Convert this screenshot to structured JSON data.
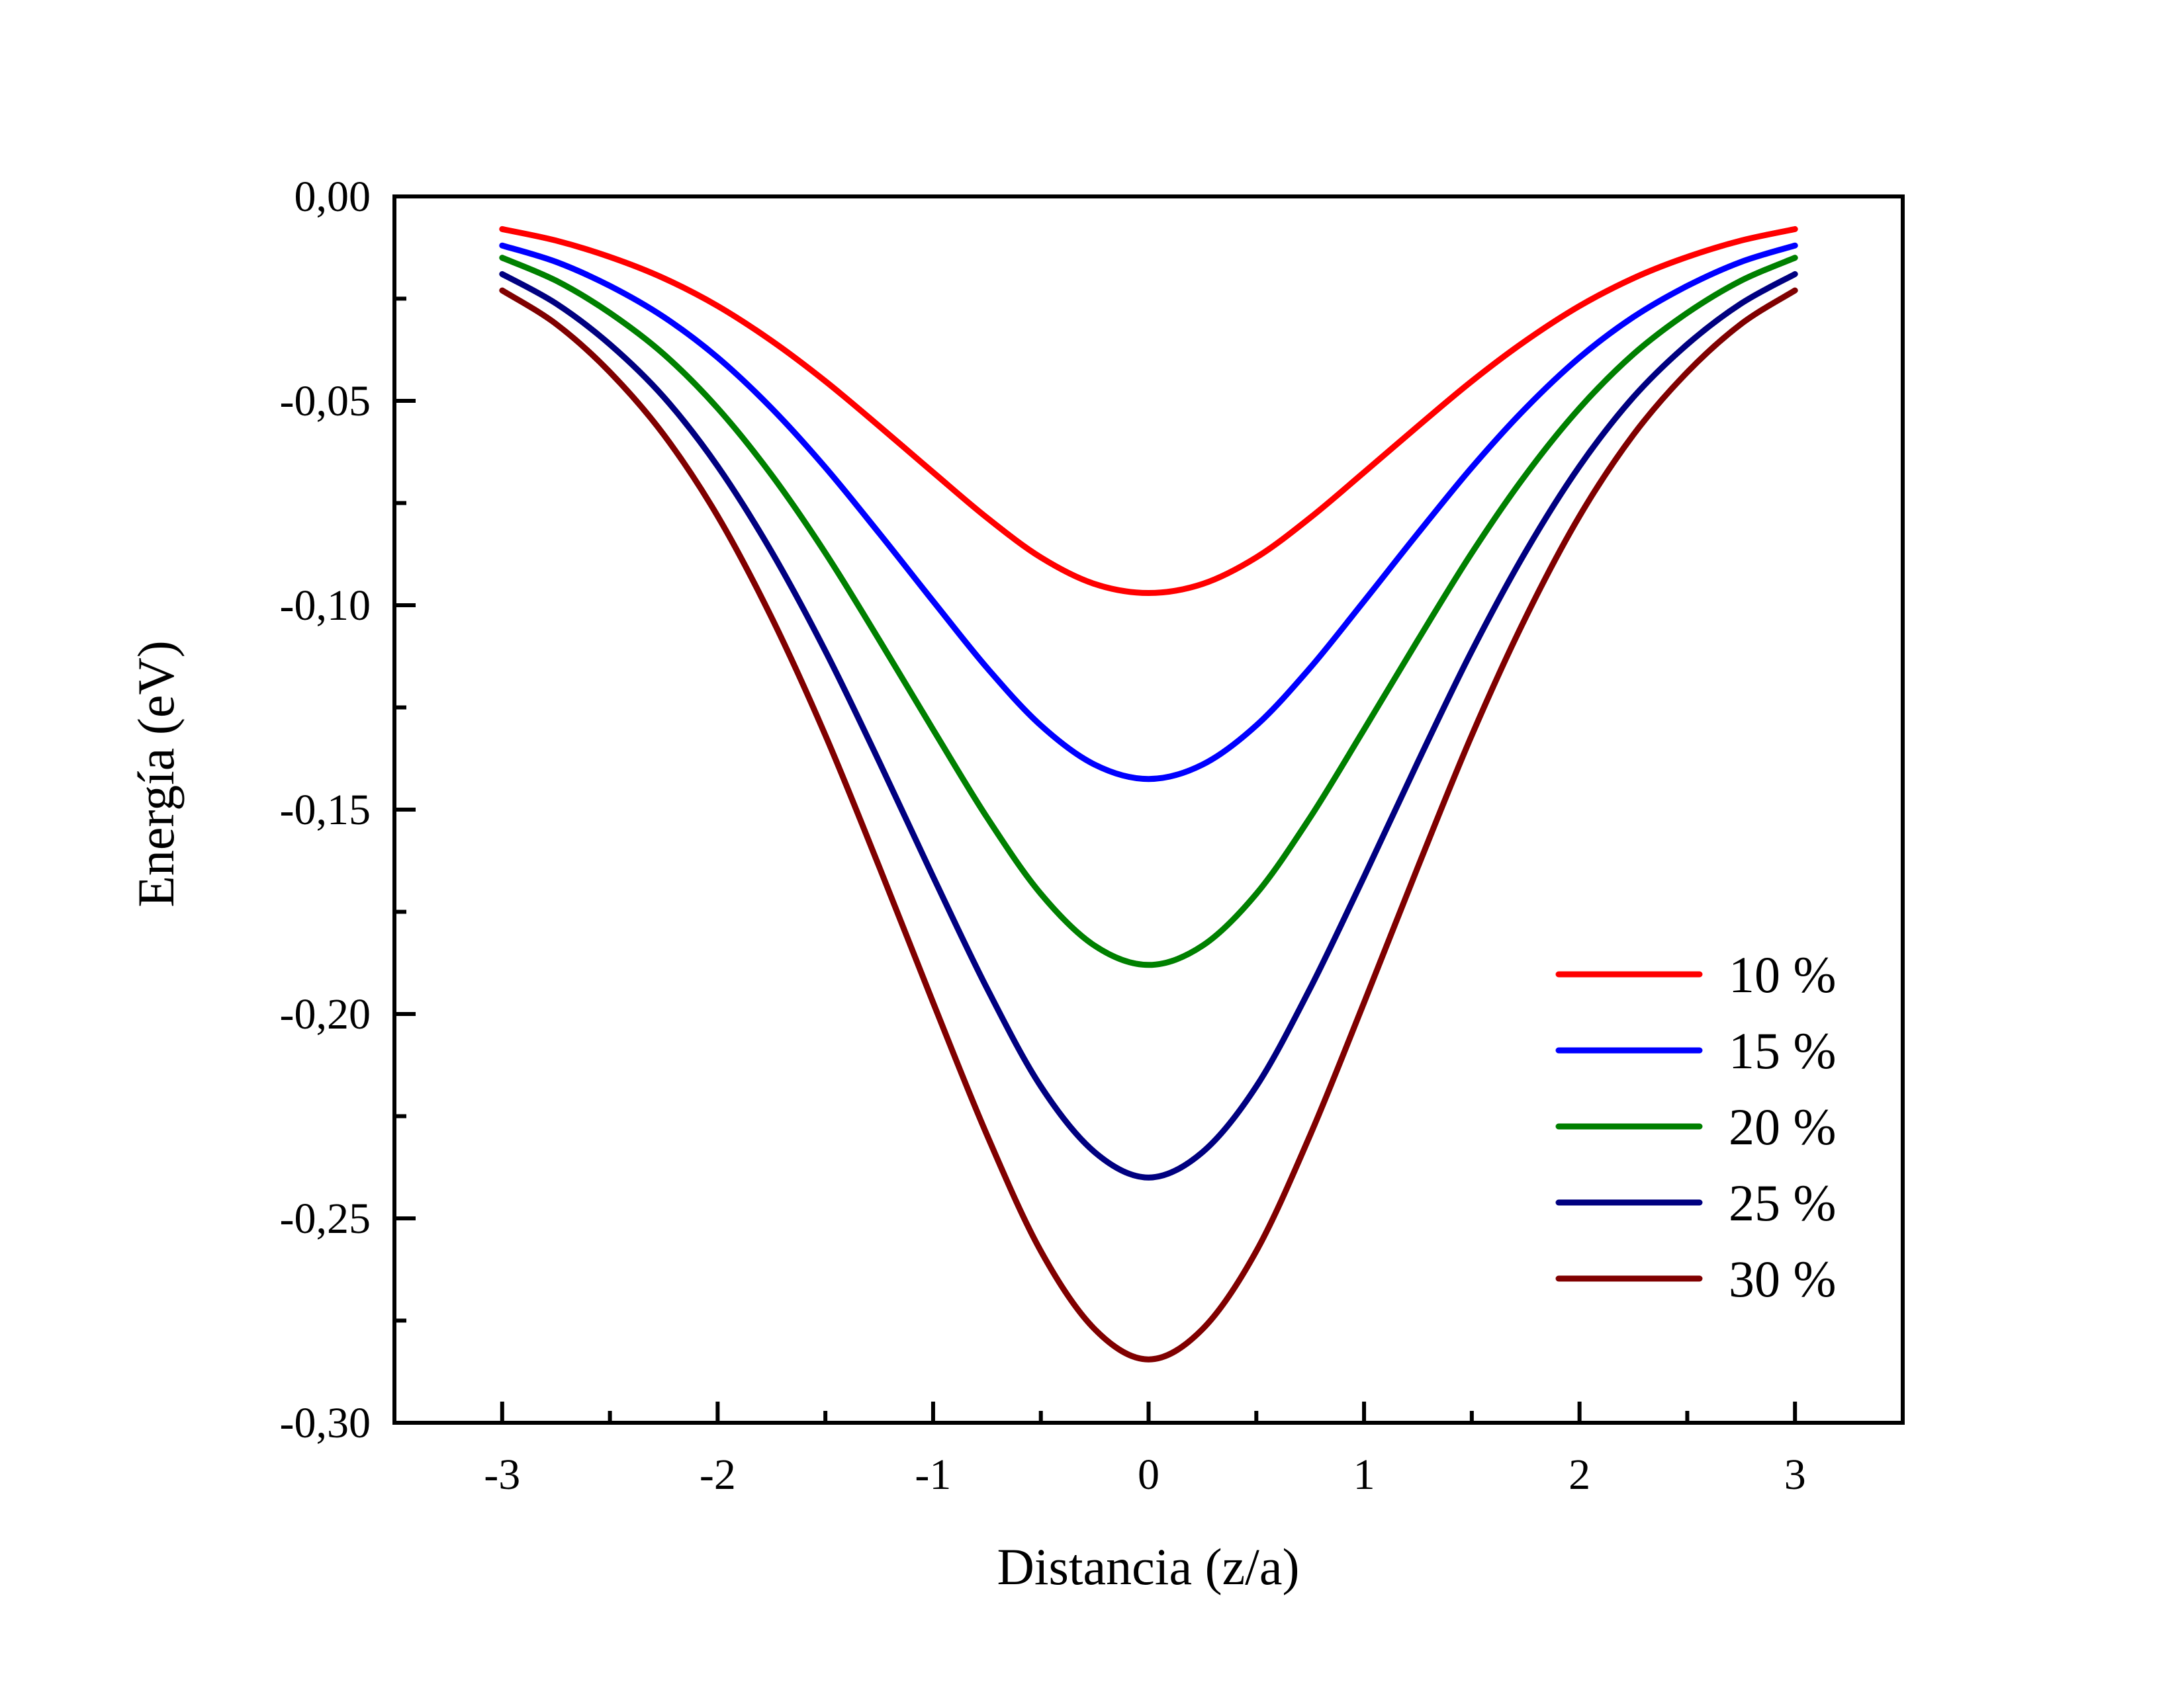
{
  "chart_data": {
    "type": "line",
    "title": "",
    "xlabel": "Distancia (z/a)",
    "ylabel": "Energía (eV)",
    "xlim": [
      -3.5,
      3.5
    ],
    "ylim": [
      -0.3,
      0.0
    ],
    "xticks": [
      -3,
      -2,
      -1,
      0,
      1,
      2,
      3
    ],
    "xtick_labels": [
      "-3",
      "-2",
      "-1",
      "0",
      "1",
      "2",
      "3"
    ],
    "yticks": [
      0.0,
      -0.05,
      -0.1,
      -0.15,
      -0.2,
      -0.25,
      -0.3
    ],
    "ytick_labels": [
      "0,00",
      "-0,05",
      "-0,10",
      "-0,15",
      "-0,20",
      "-0,25",
      "-0,30"
    ],
    "grid": false,
    "legend_position": "lower-right",
    "x": [
      -3.0,
      -2.75,
      -2.5,
      -2.25,
      -2.0,
      -1.75,
      -1.5,
      -1.25,
      -1.0,
      -0.75,
      -0.5,
      -0.25,
      0.0,
      0.25,
      0.5,
      0.75,
      1.0,
      1.25,
      1.5,
      1.75,
      2.0,
      2.25,
      2.5,
      2.75,
      3.0
    ],
    "series": [
      {
        "name": "10 %",
        "color": "#ff0000",
        "values": [
          -0.008,
          -0.0108,
          -0.0148,
          -0.02,
          -0.0268,
          -0.0353,
          -0.0452,
          -0.0562,
          -0.0675,
          -0.0786,
          -0.0883,
          -0.0948,
          -0.097,
          -0.0948,
          -0.0883,
          -0.0786,
          -0.0675,
          -0.0562,
          -0.0452,
          -0.0353,
          -0.0268,
          -0.02,
          -0.0148,
          -0.0108,
          -0.008
        ]
      },
      {
        "name": "15 %",
        "color": "#0000ff",
        "values": [
          -0.012,
          -0.016,
          -0.0219,
          -0.0295,
          -0.0394,
          -0.0518,
          -0.0663,
          -0.0824,
          -0.099,
          -0.1153,
          -0.1294,
          -0.139,
          -0.1425,
          -0.139,
          -0.1294,
          -0.1153,
          -0.099,
          -0.0824,
          -0.0663,
          -0.0518,
          -0.0394,
          -0.0295,
          -0.0219,
          -0.016,
          -0.012
        ]
      },
      {
        "name": "20 %",
        "color": "#008000",
        "values": [
          -0.015,
          -0.0206,
          -0.0285,
          -0.0386,
          -0.0518,
          -0.0681,
          -0.0872,
          -0.1085,
          -0.1304,
          -0.1519,
          -0.1706,
          -0.1833,
          -0.188,
          -0.1833,
          -0.1706,
          -0.1519,
          -0.1304,
          -0.1085,
          -0.0872,
          -0.0681,
          -0.0518,
          -0.0386,
          -0.0285,
          -0.0206,
          -0.015
        ]
      },
      {
        "name": "25 %",
        "color": "#000080",
        "values": [
          -0.019,
          -0.0262,
          -0.0362,
          -0.0491,
          -0.066,
          -0.0869,
          -0.1112,
          -0.1383,
          -0.1664,
          -0.1937,
          -0.2177,
          -0.2338,
          -0.24,
          -0.2338,
          -0.2177,
          -0.1937,
          -0.1664,
          -0.1383,
          -0.1112,
          -0.0869,
          -0.066,
          -0.0491,
          -0.0362,
          -0.0262,
          -0.019
        ]
      },
      {
        "name": "30 %",
        "color": "#800000",
        "values": [
          -0.023,
          -0.0312,
          -0.043,
          -0.0583,
          -0.0782,
          -0.103,
          -0.1318,
          -0.164,
          -0.1972,
          -0.2296,
          -0.258,
          -0.2771,
          -0.2845,
          -0.2771,
          -0.258,
          -0.2296,
          -0.1972,
          -0.164,
          -0.1318,
          -0.103,
          -0.0782,
          -0.0583,
          -0.043,
          -0.0312,
          -0.023
        ]
      }
    ]
  }
}
